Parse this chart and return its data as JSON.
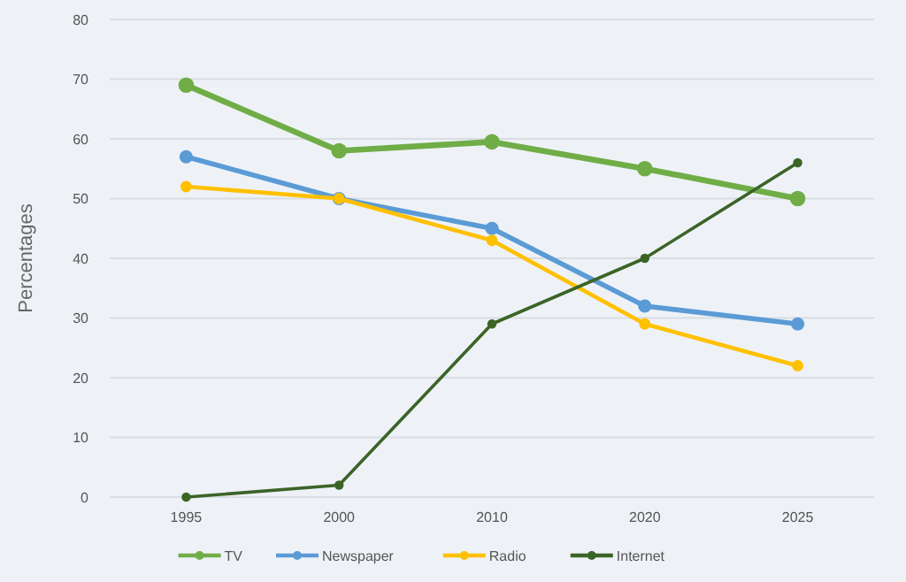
{
  "chart_data": {
    "type": "line",
    "ylabel": "Percentages",
    "categories": [
      "1995",
      "2000",
      "2010",
      "2020",
      "2025"
    ],
    "series": [
      {
        "name": "TV",
        "color": "#70ad47",
        "values": [
          69,
          58,
          59.5,
          55,
          50
        ]
      },
      {
        "name": "Newspaper",
        "color": "#5b9bd5",
        "values": [
          57,
          50,
          45,
          32,
          29
        ]
      },
      {
        "name": "Radio",
        "color": "#ffc000",
        "values": [
          52,
          50,
          43,
          29,
          22
        ]
      },
      {
        "name": "Internet",
        "color": "#3b6427",
        "values": [
          0,
          2,
          29,
          40,
          56
        ]
      }
    ],
    "ylim": [
      0,
      80
    ],
    "yticks": [
      0,
      10,
      20,
      30,
      40,
      50,
      60,
      70,
      80
    ],
    "grid": "y",
    "legend": "bottom",
    "marker": "circle",
    "line_style": "solid"
  }
}
